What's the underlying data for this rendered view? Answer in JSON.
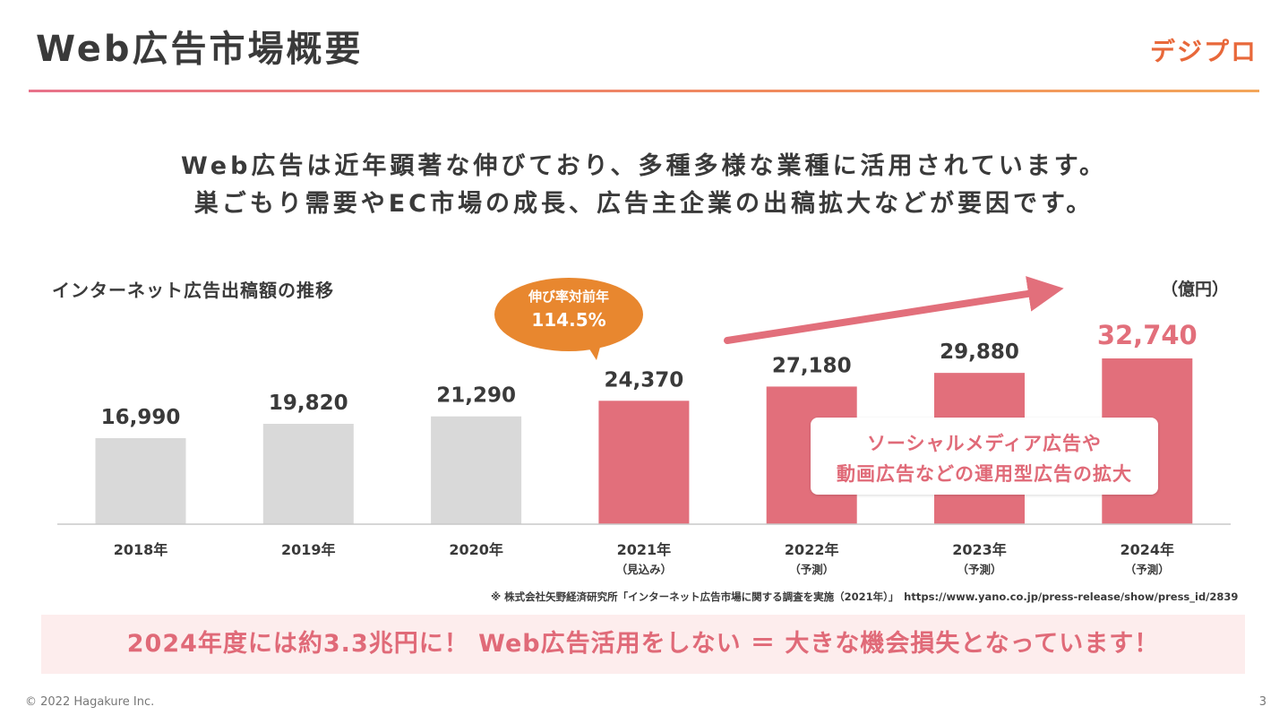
{
  "header": {
    "title": "Web広告市場概要",
    "logo": "デジプロ"
  },
  "lead": {
    "line1": "Web広告は近年顕著な伸びており、多種多様な業種に活用されています。",
    "line2": "巣ごもり需要やEC市場の成長、広告主企業の出稿拡大などが要因です。"
  },
  "chart_data": {
    "type": "bar",
    "title": "インターネット広告出稿額の推移",
    "unit": "（億円）",
    "categories": [
      "2018年",
      "2019年",
      "2020年",
      "2021年",
      "2022年",
      "2023年",
      "2024年"
    ],
    "subcategories": [
      "",
      "",
      "",
      "（見込み）",
      "（予測）",
      "（予測）",
      "（予測）"
    ],
    "values": [
      16990,
      19820,
      21290,
      24370,
      27180,
      29880,
      32740
    ],
    "value_labels": [
      "16,990",
      "19,820",
      "21,290",
      "24,370",
      "27,180",
      "29,880",
      "32,740"
    ],
    "colors": {
      "actual": "#d9d9d9",
      "forecast": "#e26f7b",
      "highlight_label": "#e26f7b",
      "label": "#3a3a3a"
    },
    "grid": false
  },
  "bubble": {
    "line1": "伸び率対前年",
    "line2": "114.5%"
  },
  "callout": {
    "line1": "ソーシャルメディア広告や",
    "line2": "動画広告などの運用型広告の拡大"
  },
  "source_note": "※ 株式会社矢野経済研究所「インターネット広告市場に関する調査を実施（2021年）」　https://www.yano.co.jp/press-release/show/press_id/2839",
  "banner": "2024年度には約3.3兆円に！ Web広告活用をしない ＝ 大きな機会損失となっています！",
  "footer": {
    "copyright": "© 2022 Hagakure Inc.",
    "page": "3"
  }
}
